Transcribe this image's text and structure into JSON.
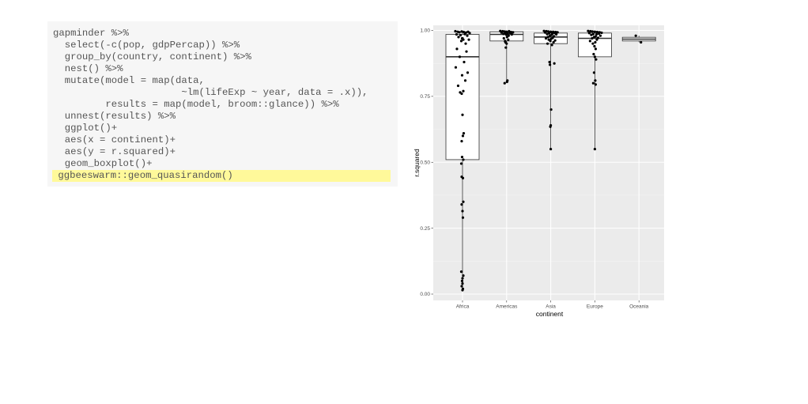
{
  "code": {
    "lines": [
      "gapminder %>%",
      "  select(-c(pop, gdpPercap)) %>%",
      "  group_by(country, continent) %>%",
      "  nest() %>%",
      "  mutate(model = map(data,",
      "                      ~lm(lifeExp ~ year, data = .x)),",
      "         results = map(model, broom::glance)) %>%",
      "  unnest(results) %>%",
      "  ggplot()+",
      "  aes(x = continent)+",
      "  aes(y = r.squared)+",
      "  geom_boxplot()+",
      "  ggbeeswarm::geom_quasirandom()"
    ],
    "highlighted_line": 12,
    "highlight_color": "#fff99a",
    "background_color": "#f6f6f6"
  },
  "chart_data": {
    "type": "boxplot",
    "xlabel": "continent",
    "ylabel": "r.squared",
    "ylim": [
      0,
      1
    ],
    "yticks": [
      "0.00",
      "0.25",
      "0.50",
      "0.75",
      "1.00"
    ],
    "categories": [
      "Africa",
      "Americas",
      "Asia",
      "Europe",
      "Oceania"
    ],
    "panel_background": "#ebebeb",
    "grid": true,
    "boxes": [
      {
        "category": "Africa",
        "min": 0.02,
        "q1": 0.51,
        "median": 0.9,
        "q3": 0.985,
        "max": 1.0
      },
      {
        "category": "Americas",
        "min": 0.8,
        "q1": 0.96,
        "median": 0.985,
        "q3": 0.995,
        "max": 1.0
      },
      {
        "category": "Asia",
        "min": 0.55,
        "q1": 0.95,
        "median": 0.975,
        "q3": 0.99,
        "max": 1.0
      },
      {
        "category": "Europe",
        "min": 0.55,
        "q1": 0.9,
        "median": 0.97,
        "q3": 0.99,
        "max": 1.0
      },
      {
        "category": "Oceania",
        "min": 0.955,
        "q1": 0.96,
        "median": 0.967,
        "q3": 0.974,
        "max": 0.98
      }
    ],
    "points": [
      {
        "category": "Africa",
        "offsets": [
          -0.18,
          -0.12,
          -0.08,
          -0.02,
          0.03,
          0.09,
          0.14,
          0.18,
          -0.15,
          0.06,
          -0.05,
          0.12,
          -0.1,
          0.0,
          0.16,
          -0.03,
          0.08,
          -0.14,
          0.1,
          -0.07,
          0.04,
          -0.17,
          0.13,
          -0.01,
          0.07,
          -0.11,
          0.02,
          -0.06,
          -0.02,
          0.0,
          0.03,
          -0.01,
          0.02,
          -0.03,
          -0.02,
          0.01,
          0.02,
          -0.02,
          0.0,
          0.01,
          -0.03,
          0.02,
          0.0,
          -0.01,
          0.0,
          -0.02,
          0.01,
          0.0,
          0.02,
          -0.01,
          0.01,
          -0.02
        ],
        "values": [
          0.997,
          0.995,
          0.993,
          0.996,
          0.994,
          0.992,
          0.995,
          0.99,
          0.985,
          0.986,
          0.982,
          0.98,
          0.975,
          0.97,
          0.965,
          0.96,
          0.95,
          0.93,
          0.92,
          0.9,
          0.88,
          0.86,
          0.84,
          0.83,
          0.81,
          0.79,
          0.77,
          0.765,
          0.76,
          0.68,
          0.61,
          0.52,
          0.51,
          0.495,
          0.445,
          0.44,
          0.35,
          0.34,
          0.315,
          0.29,
          0.085,
          0.07,
          0.06,
          0.05,
          0.04,
          0.03,
          0.02,
          0.015,
          0.965,
          0.97,
          0.6,
          0.58
        ]
      },
      {
        "category": "Americas",
        "offsets": [
          -0.16,
          -0.1,
          -0.05,
          0.0,
          0.06,
          0.11,
          0.16,
          -0.13,
          0.09,
          -0.03,
          0.03,
          -0.08,
          0.13,
          -0.01,
          0.05,
          0.01,
          -0.07,
          0.04,
          -0.04,
          -0.03,
          0.0,
          -0.02,
          0.02,
          0.01,
          -0.05
        ],
        "values": [
          0.998,
          0.997,
          0.996,
          0.995,
          0.997,
          0.994,
          0.993,
          0.992,
          0.991,
          0.99,
          0.989,
          0.987,
          0.985,
          0.984,
          0.98,
          0.975,
          0.97,
          0.965,
          0.96,
          0.955,
          0.95,
          0.935,
          0.81,
          0.805,
          0.8
        ]
      },
      {
        "category": "Asia",
        "offsets": [
          -0.17,
          -0.11,
          -0.06,
          0.0,
          0.06,
          0.12,
          0.17,
          -0.14,
          0.1,
          -0.04,
          0.04,
          -0.09,
          0.14,
          0.02,
          -0.02,
          0.08,
          -0.07,
          0.05,
          -0.12,
          0.01,
          -0.05,
          0.11,
          -0.01,
          0.07,
          -0.08,
          0.03,
          -0.03,
          0.09,
          -0.02,
          0.01,
          0.0,
          -0.01,
          0.0
        ],
        "values": [
          0.998,
          0.997,
          0.996,
          0.995,
          0.995,
          0.994,
          0.993,
          0.992,
          0.99,
          0.989,
          0.988,
          0.986,
          0.985,
          0.983,
          0.98,
          0.978,
          0.975,
          0.972,
          0.97,
          0.968,
          0.965,
          0.962,
          0.96,
          0.955,
          0.95,
          0.945,
          0.88,
          0.875,
          0.87,
          0.7,
          0.64,
          0.635,
          0.55
        ]
      },
      {
        "category": "Europe",
        "offsets": [
          -0.17,
          -0.11,
          -0.06,
          0.0,
          0.06,
          0.12,
          0.17,
          -0.14,
          0.1,
          -0.04,
          0.04,
          -0.09,
          0.14,
          0.02,
          -0.02,
          0.08,
          -0.07,
          0.05,
          -0.12,
          0.01,
          -0.05,
          -0.01,
          0.02,
          -0.03,
          0.0,
          0.03,
          -0.02,
          0.01,
          -0.04,
          0.02,
          0.0
        ],
        "values": [
          0.998,
          0.997,
          0.996,
          0.995,
          0.994,
          0.993,
          0.991,
          0.99,
          0.988,
          0.986,
          0.985,
          0.983,
          0.98,
          0.977,
          0.975,
          0.972,
          0.97,
          0.965,
          0.96,
          0.955,
          0.95,
          0.94,
          0.93,
          0.91,
          0.9,
          0.89,
          0.84,
          0.81,
          0.8,
          0.795,
          0.55
        ]
      },
      {
        "category": "Oceania",
        "offsets": [
          -0.08,
          0.05
        ],
        "values": [
          0.98,
          0.955
        ]
      }
    ]
  }
}
